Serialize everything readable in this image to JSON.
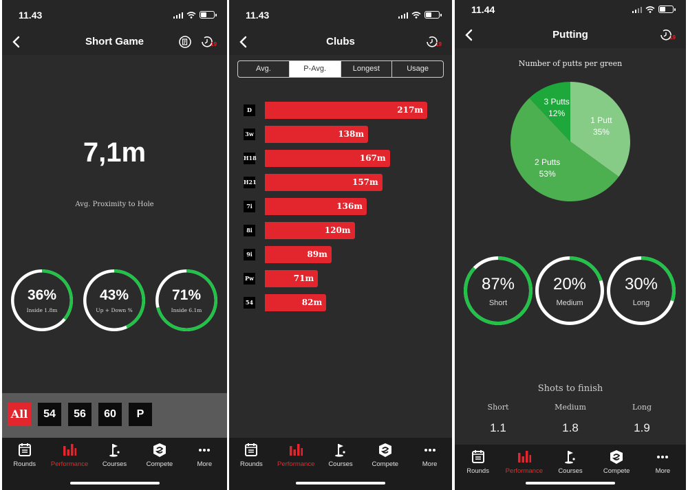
{
  "screens": [
    {
      "time": "11.43",
      "title": "Short Game",
      "badge": "19",
      "proximity": {
        "value": "7,1m",
        "label": "Avg. Proximity to Hole"
      },
      "rings": [
        {
          "value": "36%",
          "label": "Inside 1.8m",
          "fraction": 0.36
        },
        {
          "value": "43%",
          "label": "Up + Down %",
          "fraction": 0.43
        },
        {
          "value": "71%",
          "label": "Inside 6.1m",
          "fraction": 0.71
        }
      ],
      "filters": [
        "All",
        "54",
        "56",
        "60",
        "P"
      ]
    },
    {
      "time": "11.43",
      "title": "Clubs",
      "badge": "19",
      "segments": [
        "Avg.",
        "P-Avg.",
        "Longest",
        "Usage"
      ],
      "active_segment": 1,
      "chart_data": {
        "type": "bar",
        "orientation": "horizontal",
        "unit": "m",
        "categories": [
          "D",
          "3w",
          "H18",
          "H21",
          "7i",
          "8i",
          "9i",
          "Pw",
          "54"
        ],
        "values": [
          217,
          138,
          167,
          157,
          136,
          120,
          89,
          71,
          82
        ],
        "labels": [
          "217m",
          "138m",
          "167m",
          "157m",
          "136m",
          "120m",
          "89m",
          "71m",
          "82m"
        ]
      }
    },
    {
      "time": "11.44",
      "title": "Putting",
      "badge": "19",
      "pie_title": "Number of putts per green",
      "chart_data": {
        "type": "pie",
        "title": "Number of putts per green",
        "slices": [
          {
            "label": "1 Putt",
            "value": 35,
            "text": "35%"
          },
          {
            "label": "2 Putts",
            "value": 53,
            "text": "53%"
          },
          {
            "label": "3 Putts",
            "value": 12,
            "text": "12%"
          }
        ]
      },
      "rings": [
        {
          "value": "87%",
          "label": "Short",
          "fraction": 0.87
        },
        {
          "value": "20%",
          "label": "Medium",
          "fraction": 0.2
        },
        {
          "value": "30%",
          "label": "Long",
          "fraction": 0.3
        }
      ],
      "shots_to_finish": {
        "title": "Shots to finish",
        "items": [
          {
            "label": "Short",
            "value": "1.1"
          },
          {
            "label": "Medium",
            "value": "1.8"
          },
          {
            "label": "Long",
            "value": "1.9"
          }
        ]
      }
    }
  ],
  "tabs": [
    "Rounds",
    "Performance",
    "Courses",
    "Compete",
    "More"
  ],
  "active_tab": 1,
  "colors": {
    "accent_red": "#e3262d",
    "ring_green": "#22c248",
    "pie_light": "#86cb86",
    "pie_mid": "#4caf50",
    "pie_dark": "#1ea83c",
    "background": "#2b2b2b"
  }
}
